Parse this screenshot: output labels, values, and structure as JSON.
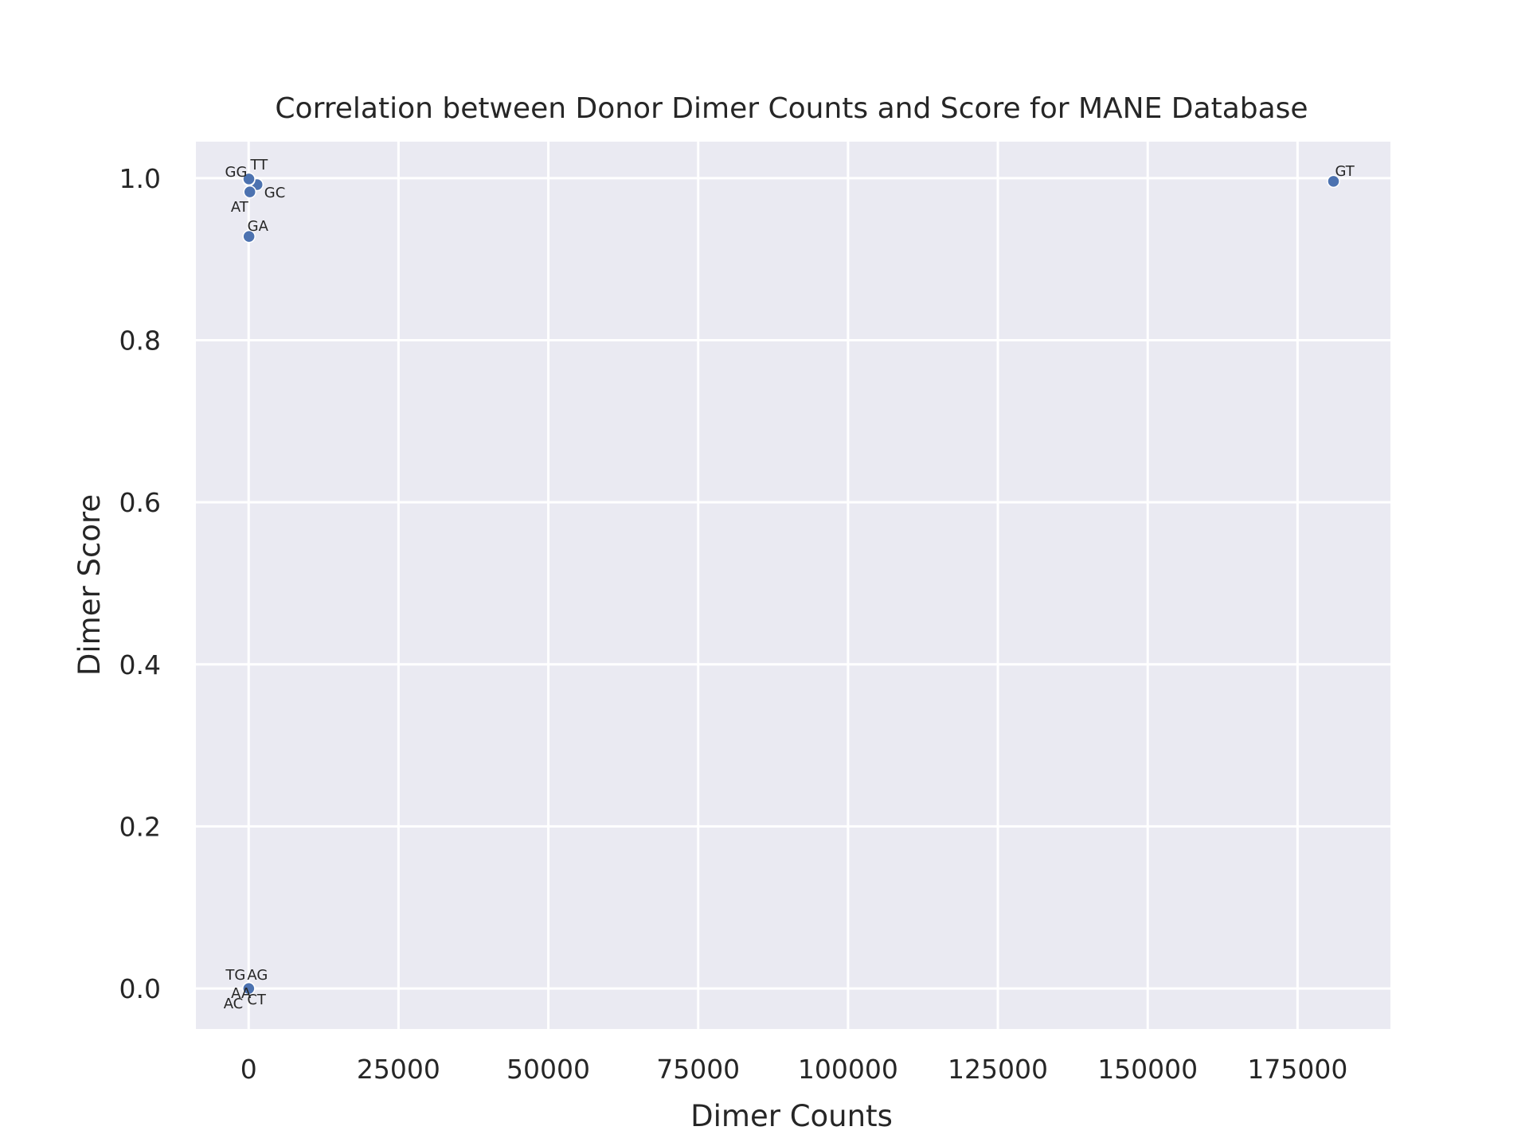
{
  "chart_data": {
    "type": "scatter",
    "title": "Correlation between Donor Dimer Counts and Score for MANE Database",
    "xlabel": "Dimer Counts",
    "ylabel": "Dimer Score",
    "xlim": [
      -8800,
      190500
    ],
    "ylim": [
      -0.05,
      1.045
    ],
    "xticks": [
      "0",
      "25000",
      "50000",
      "75000",
      "100000",
      "125000",
      "150000",
      "175000"
    ],
    "xtick_values": [
      0,
      25000,
      50000,
      75000,
      100000,
      125000,
      150000,
      175000
    ],
    "yticks": [
      "0.0",
      "0.2",
      "0.4",
      "0.6",
      "0.8",
      "1.0"
    ],
    "ytick_values": [
      0.0,
      0.2,
      0.4,
      0.6,
      0.8,
      1.0
    ],
    "grid": true,
    "background": "#eaeaf2",
    "marker_color": "#4c72b0",
    "points": [
      {
        "label": "GT",
        "x": 181000,
        "y": 0.996
      },
      {
        "label": "GC",
        "x": 1400,
        "y": 0.992
      },
      {
        "label": "AT",
        "x": 200,
        "y": 0.983
      },
      {
        "label": "GG",
        "x": 30,
        "y": 0.998
      },
      {
        "label": "TT",
        "x": 40,
        "y": 0.999
      },
      {
        "label": "GA",
        "x": 60,
        "y": 0.928
      },
      {
        "label": "AG",
        "x": 20,
        "y": 0.0
      },
      {
        "label": "TG",
        "x": 10,
        "y": 0.0
      },
      {
        "label": "AA",
        "x": 5,
        "y": 0.0
      },
      {
        "label": "AC",
        "x": 5,
        "y": 0.0
      },
      {
        "label": "CT",
        "x": 15,
        "y": 0.0
      }
    ]
  }
}
